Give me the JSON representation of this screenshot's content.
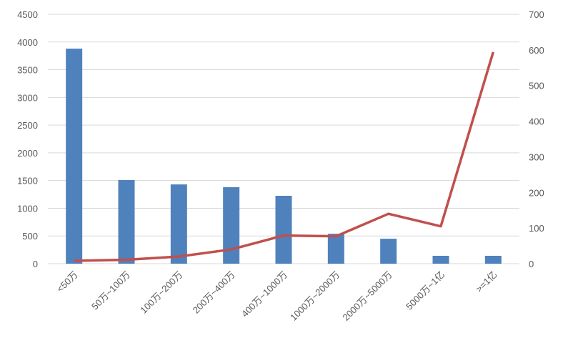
{
  "chart_data": {
    "type": "bar+line",
    "categories": [
      "<50万",
      "50万~100万",
      "100万~200万",
      "200万~400万",
      "400万~1000万",
      "1000万~2000万",
      "2000万~5000万",
      "5000万~1亿",
      ">=1亿"
    ],
    "series": [
      {
        "type": "bar",
        "axis": "left",
        "color": "#4f81bd",
        "values": [
          3880,
          1510,
          1430,
          1380,
          1225,
          540,
          450,
          142,
          142
        ]
      },
      {
        "type": "line",
        "axis": "right",
        "color": "#c0504d",
        "values": [
          8,
          11,
          20,
          40,
          79,
          77,
          140,
          105,
          594
        ]
      }
    ],
    "y_left": {
      "min": 0,
      "max": 4500,
      "ticks": [
        0,
        500,
        1000,
        1500,
        2000,
        2500,
        3000,
        3500,
        4000,
        4500
      ]
    },
    "y_right": {
      "min": 0,
      "max": 700,
      "ticks": [
        0,
        100,
        200,
        300,
        400,
        500,
        600,
        700
      ]
    },
    "grid": true,
    "legend": "none"
  }
}
